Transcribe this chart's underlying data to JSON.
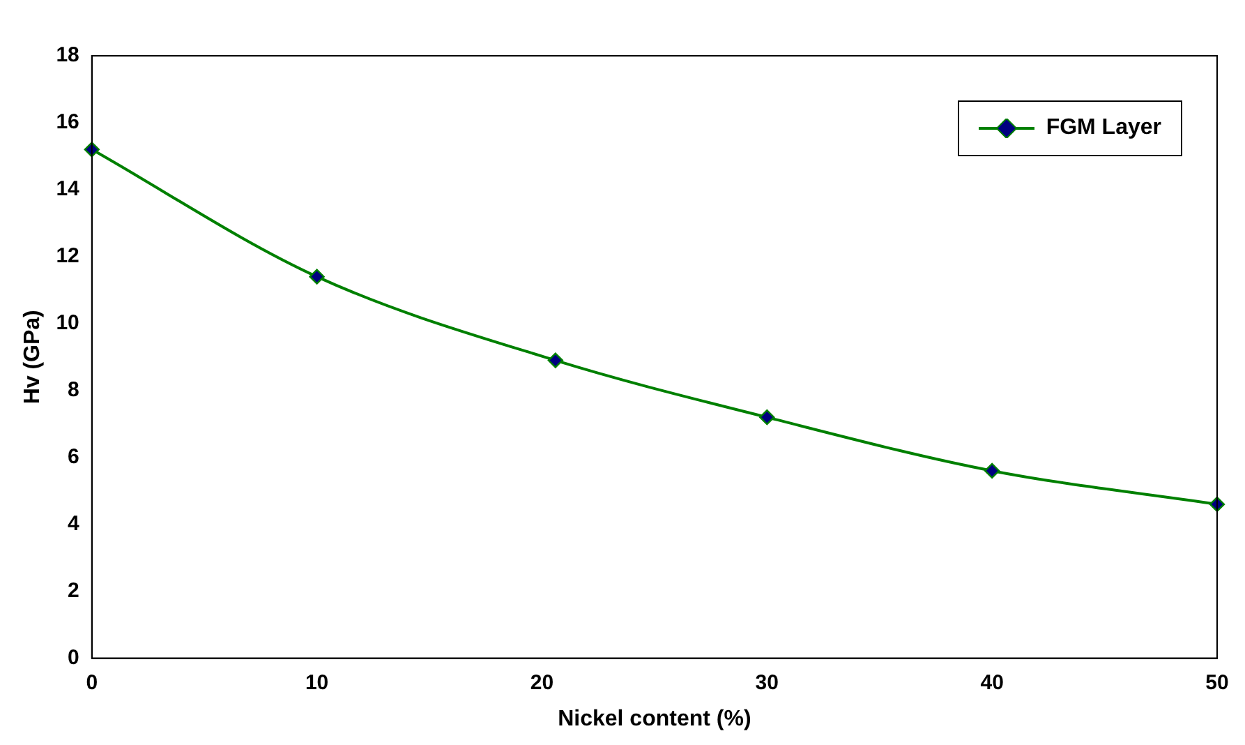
{
  "chart_data": {
    "type": "line",
    "xlabel": "Nickel content (%)",
    "ylabel": "Hv (GPa)",
    "x": [
      0,
      10,
      20.6,
      30,
      40,
      50
    ],
    "series": [
      {
        "name": "FGM Layer",
        "color": "#008000",
        "values": [
          15.2,
          11.4,
          8.9,
          7.2,
          5.6,
          4.6
        ]
      }
    ],
    "xlim": [
      0,
      50
    ],
    "xticks": [
      0,
      10,
      20,
      30,
      40,
      50
    ],
    "ylim": [
      0,
      18
    ],
    "yticks": [
      0,
      2,
      4,
      6,
      8,
      10,
      12,
      14,
      16,
      18
    ],
    "grid": false,
    "legend": "top right",
    "marker": "diamond",
    "line_style": "solid"
  }
}
